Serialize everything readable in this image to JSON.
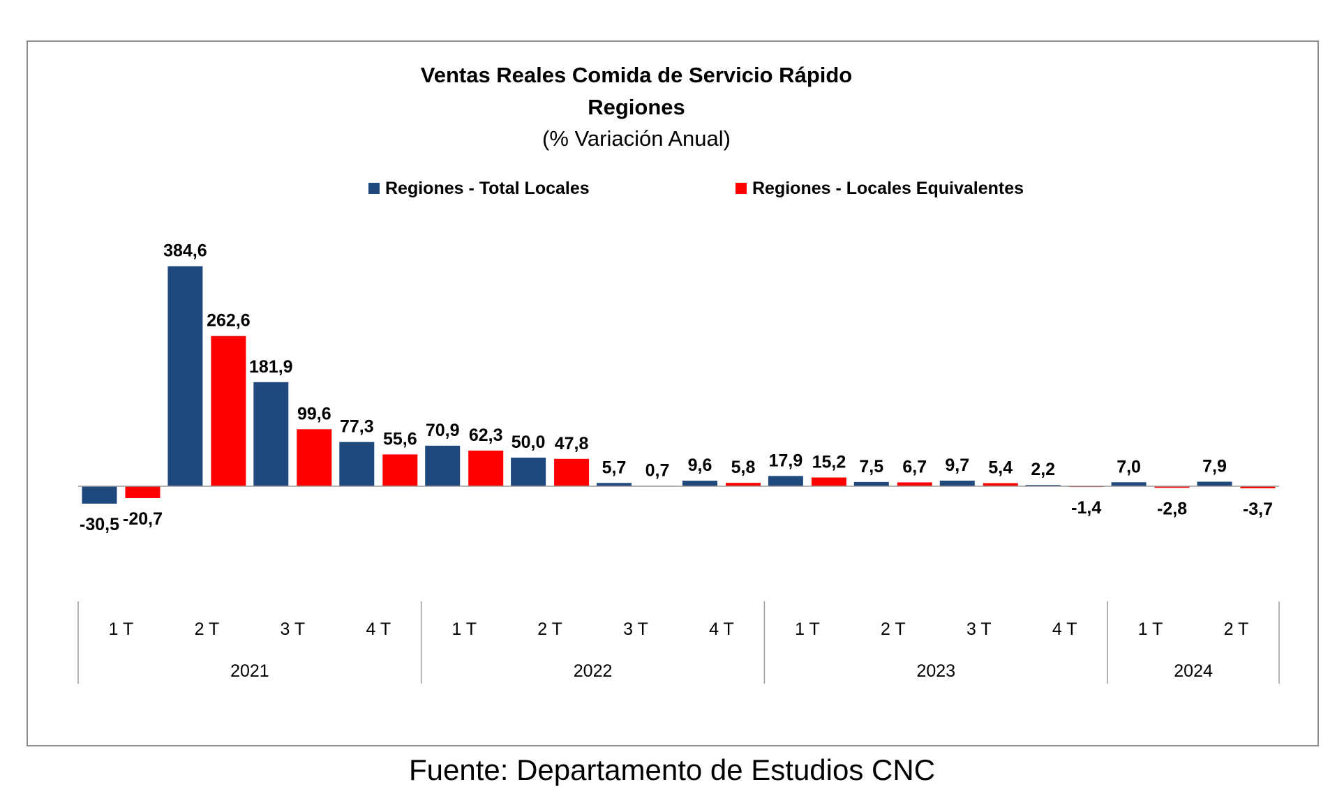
{
  "chart_data": {
    "type": "bar",
    "title": "Ventas Reales Comida de Servicio Rápido",
    "subtitle": "Regiones",
    "unit_note": "(% Variación Anual)",
    "quarters": [
      "1 T",
      "2 T",
      "3 T",
      "4 T",
      "1 T",
      "2 T",
      "3 T",
      "4 T",
      "1 T",
      "2 T",
      "3 T",
      "4 T",
      "1 T",
      "2 T"
    ],
    "years": [
      {
        "label": "2021",
        "quarters": 4
      },
      {
        "label": "2022",
        "quarters": 4
      },
      {
        "label": "2023",
        "quarters": 4
      },
      {
        "label": "2024",
        "quarters": 2
      }
    ],
    "series": [
      {
        "name": "Regiones - Total Locales",
        "color": "#1f497d",
        "values": [
          -30.5,
          384.6,
          181.9,
          77.3,
          70.9,
          50.0,
          5.7,
          9.6,
          17.9,
          7.5,
          9.7,
          2.2,
          7.0,
          7.9
        ],
        "labels": [
          "-30,5",
          "384,6",
          "181,9",
          "77,3",
          "70,9",
          "50,0",
          "5,7",
          "9,6",
          "17,9",
          "7,5",
          "9,7",
          "2,2",
          "7,0",
          "7,9"
        ]
      },
      {
        "name": "Regiones - Locales Equivalentes",
        "color": "#ff0000",
        "values": [
          -20.7,
          262.6,
          99.6,
          55.6,
          62.3,
          47.8,
          0.7,
          5.8,
          15.2,
          6.7,
          5.4,
          -1.4,
          -2.8,
          -3.7
        ],
        "labels": [
          "-20,7",
          "262,6",
          "99,6",
          "55,6",
          "62,3",
          "47,8",
          "0,7",
          "5,8",
          "15,2",
          "6,7",
          "5,4",
          "-1,4",
          "-2,8",
          "-3,7"
        ]
      }
    ],
    "legend_position": "top-center",
    "grid": false
  },
  "footer": {
    "source": "Fuente: Departamento de Estudios CNC"
  }
}
